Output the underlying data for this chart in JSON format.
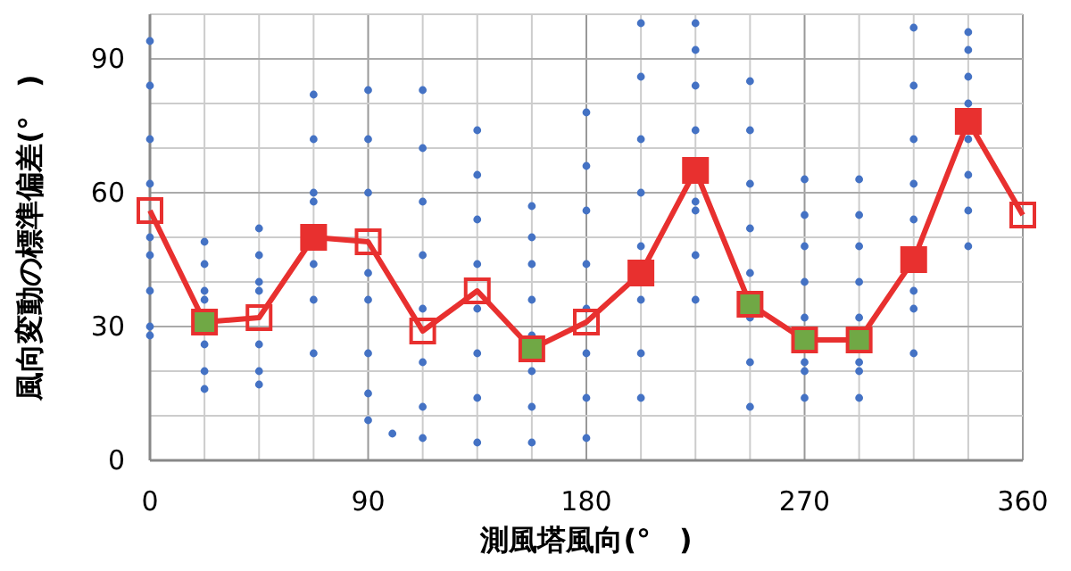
{
  "chart_data": {
    "type": "scatter",
    "xlabel": "測風塔風向(°　)",
    "ylabel": "風向変動の標準偏差(°　)",
    "xlim": [
      0,
      360
    ],
    "ylim": [
      0,
      100
    ],
    "xticks": [
      0,
      {
        "value": 22.5,
        "label": null
      },
      {
        "value": 45,
        "label": null
      },
      {
        "value": 67.5,
        "label": null
      },
      90,
      {
        "value": 112.5,
        "label": null
      },
      {
        "value": 135,
        "label": null
      },
      {
        "value": 157.5,
        "label": null
      },
      180,
      {
        "value": 202.5,
        "label": null
      },
      {
        "value": 225,
        "label": null
      },
      {
        "value": 247.5,
        "label": null
      },
      270,
      {
        "value": 292.5,
        "label": null
      },
      {
        "value": 315,
        "label": null
      },
      {
        "value": 337.5,
        "label": null
      },
      360
    ],
    "yticks": [
      0,
      {
        "value": 10,
        "label": null
      },
      {
        "value": 20,
        "label": null
      },
      30,
      {
        "value": 40,
        "label": null
      },
      {
        "value": 50,
        "label": null
      },
      60,
      {
        "value": 70,
        "label": null
      },
      {
        "value": 80,
        "label": null
      },
      90,
      {
        "value": 100,
        "label": null
      }
    ],
    "grid": true,
    "series": [
      {
        "color": "#4472c4",
        "marker": "circle",
        "x": [
          0,
          0,
          0,
          0,
          0,
          0,
          0,
          0,
          0,
          22.5,
          22.5,
          22.5,
          22.5,
          22.5,
          22.5,
          22.5,
          45,
          45,
          45,
          45,
          45,
          45,
          45,
          67.5,
          67.5,
          67.5,
          67.5,
          67.5,
          67.5,
          67.5,
          90,
          90,
          90,
          90,
          90,
          90,
          90,
          90,
          100,
          112.5,
          112.5,
          112.5,
          112.5,
          112.5,
          112.5,
          112.5,
          112.5,
          135,
          135,
          135,
          135,
          135,
          135,
          135,
          135,
          157.5,
          157.5,
          157.5,
          157.5,
          157.5,
          157.5,
          157.5,
          157.5,
          180,
          180,
          180,
          180,
          180,
          180,
          180,
          180,
          202.5,
          202.5,
          202.5,
          202.5,
          202.5,
          202.5,
          202.5,
          202.5,
          225,
          225,
          225,
          225,
          225,
          225,
          225,
          225,
          247.5,
          247.5,
          247.5,
          247.5,
          247.5,
          247.5,
          247.5,
          247.5,
          270,
          270,
          270,
          270,
          270,
          270,
          270,
          270,
          292.5,
          292.5,
          292.5,
          292.5,
          292.5,
          292.5,
          292.5,
          292.5,
          315,
          315,
          315,
          315,
          315,
          315,
          315,
          315,
          337.5,
          337.5,
          337.5,
          337.5,
          337.5,
          337.5,
          337.5,
          337.5
        ],
        "values": [
          28,
          30,
          38,
          46,
          50,
          62,
          72,
          84,
          94,
          16,
          20,
          26,
          36,
          38,
          44,
          49,
          17,
          20,
          26,
          38,
          40,
          46,
          52,
          24,
          36,
          44,
          58,
          60,
          72,
          82,
          9,
          15,
          24,
          36,
          42,
          60,
          72,
          83,
          6,
          5,
          12,
          22,
          34,
          46,
          58,
          70,
          83,
          4,
          14,
          24,
          34,
          44,
          54,
          64,
          74,
          4,
          12,
          20,
          28,
          36,
          44,
          50,
          57,
          5,
          14,
          24,
          34,
          44,
          56,
          66,
          78,
          14,
          24,
          36,
          48,
          60,
          72,
          86,
          98,
          36,
          46,
          56,
          58,
          74,
          84,
          92,
          98,
          12,
          22,
          32,
          42,
          52,
          62,
          74,
          85,
          14,
          20,
          22,
          32,
          40,
          48,
          55,
          63,
          14,
          20,
          22,
          32,
          40,
          48,
          55,
          63,
          24,
          34,
          38,
          54,
          62,
          72,
          84,
          97,
          48,
          56,
          64,
          72,
          80,
          86,
          92,
          96
        ]
      },
      {
        "type": "line",
        "color": "#e8302f",
        "marker": "square",
        "x": [
          0,
          22.5,
          45,
          67.5,
          90,
          112.5,
          135,
          157.5,
          180,
          202.5,
          225,
          247.5,
          270,
          292.5,
          315,
          337.5,
          360
        ],
        "values": [
          56,
          31,
          32,
          50,
          49,
          29,
          38,
          25,
          31,
          42,
          65,
          35,
          27,
          27,
          45,
          76,
          55
        ],
        "colors": [
          null,
          "#70a845",
          null,
          "#e8302f",
          null,
          null,
          null,
          "#70a845",
          null,
          "#e8302f",
          "#e8302f",
          "#70a845",
          "#70a845",
          "#70a845",
          "#e8302f",
          "#e8302f",
          null
        ]
      }
    ]
  }
}
